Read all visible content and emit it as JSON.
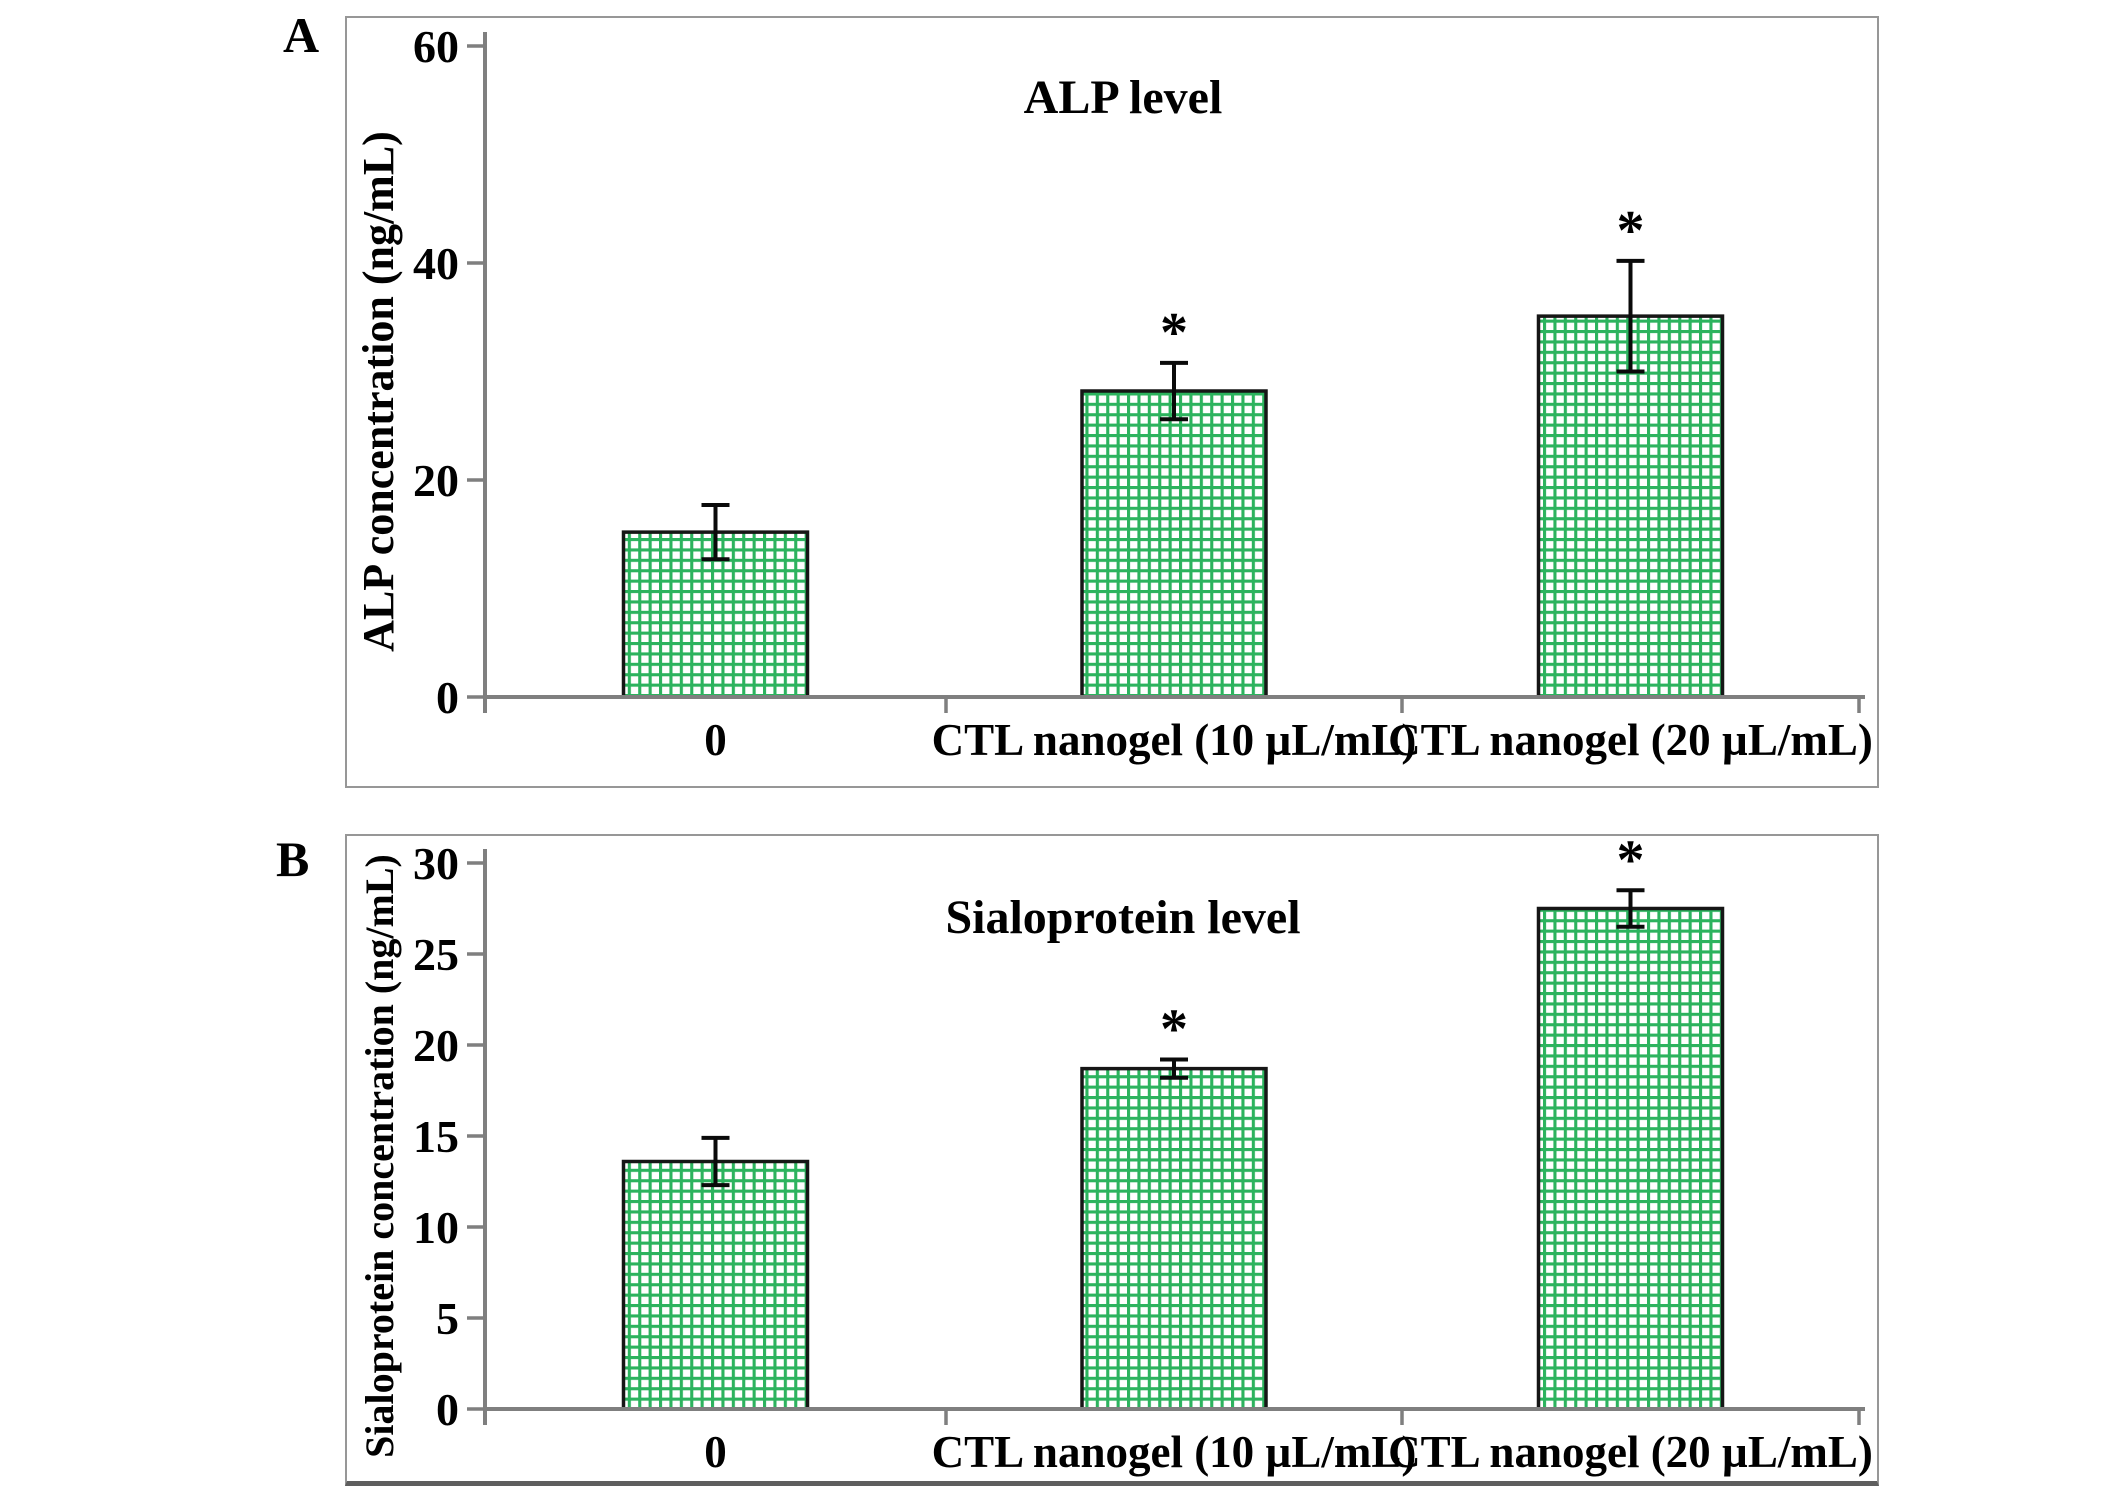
{
  "styles": {
    "background": "#ffffff",
    "bar_grid_green": "#2cb35e",
    "bar_background": "#ffffff",
    "bar_border_color": "#161616",
    "axis_color": "#7f7f7f",
    "error_bar_color": "#0a0a0a",
    "text_color": "#000000",
    "panel_border_color": "#979797"
  },
  "chart_data": [
    {
      "type": "bar",
      "panel_label": "A",
      "title": "ALP level",
      "ylabel": "ALP concentration (ng/mL)",
      "xlabel": "",
      "categories": [
        "0",
        "CTL nanogel (10 µL/mL)",
        "CTL nanogel (20 µL/mL)"
      ],
      "values": [
        15.2,
        28.2,
        35.1
      ],
      "error_bars": [
        2.5,
        2.6,
        5.1
      ],
      "significance": [
        "",
        "*",
        "*"
      ],
      "ylim": [
        0,
        60
      ],
      "yticks": [
        0,
        20,
        40,
        60
      ],
      "grid": "off",
      "legend": "none"
    },
    {
      "type": "bar",
      "panel_label": "B",
      "title": "Sialoprotein level",
      "ylabel": "Sialoprotein concentration (ng/mL)",
      "xlabel": "",
      "categories": [
        "0",
        "CTL nanogel (10 µL/mL)",
        "CTL nanogel (20 µL/mL)"
      ],
      "values": [
        13.6,
        18.7,
        27.5
      ],
      "error_bars": [
        1.3,
        0.5,
        1.0
      ],
      "significance": [
        "",
        "*",
        "*"
      ],
      "ylim": [
        0,
        30
      ],
      "yticks": [
        0,
        5,
        10,
        15,
        20,
        25,
        30
      ],
      "grid": "off",
      "legend": "none"
    }
  ]
}
